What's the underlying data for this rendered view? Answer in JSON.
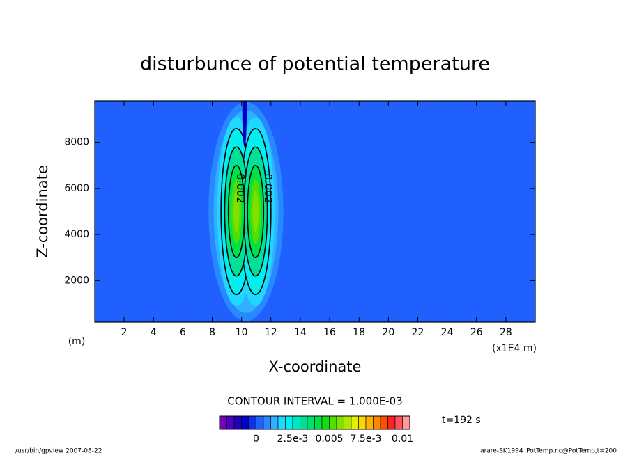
{
  "chart_data": {
    "type": "contour",
    "title": "disturbunce of potential temperature",
    "xlabel": "X-coordinate",
    "ylabel": "Z-coordinate",
    "x_units": "(x1E4 m)",
    "y_units": "(m)",
    "xlim": [
      0,
      30
    ],
    "ylim": [
      200,
      9800
    ],
    "xticks": [
      2,
      4,
      6,
      8,
      10,
      12,
      14,
      16,
      18,
      20,
      22,
      24,
      26,
      28
    ],
    "yticks": [
      2000,
      4000,
      6000,
      8000
    ],
    "background_value": 0,
    "blobs": [
      {
        "x": 10.3,
        "z": 5000,
        "rx": 2.55,
        "rz": 4750,
        "value": 0.0005
      },
      {
        "x": 10.3,
        "z": 5000,
        "rx": 2.2,
        "rz": 4400,
        "value": 0.001
      },
      {
        "x": 9.65,
        "z": 5000,
        "rx": 1.3,
        "rz": 4100,
        "value": 0.0015
      },
      {
        "x": 10.95,
        "z": 5000,
        "rx": 1.3,
        "rz": 4100,
        "value": 0.0015
      },
      {
        "x": 9.65,
        "z": 5000,
        "rx": 1.05,
        "rz": 3600,
        "value": 0.002
      },
      {
        "x": 10.95,
        "z": 5000,
        "rx": 1.05,
        "rz": 3600,
        "value": 0.002
      },
      {
        "x": 9.65,
        "z": 5000,
        "rx": 0.8,
        "rz": 2800,
        "value": 0.003
      },
      {
        "x": 10.95,
        "z": 5000,
        "rx": 0.8,
        "rz": 2800,
        "value": 0.003
      },
      {
        "x": 9.65,
        "z": 5000,
        "rx": 0.55,
        "rz": 2000,
        "value": 0.004
      },
      {
        "x": 10.95,
        "z": 5000,
        "rx": 0.55,
        "rz": 2000,
        "value": 0.004
      },
      {
        "x": 9.65,
        "z": 5000,
        "rx": 0.35,
        "rz": 1400,
        "value": 0.005
      },
      {
        "x": 10.95,
        "z": 5000,
        "rx": 0.35,
        "rz": 1400,
        "value": 0.005
      },
      {
        "x": 9.65,
        "z": 5000,
        "rx": 0.2,
        "rz": 900,
        "value": 0.0055
      },
      {
        "x": 10.95,
        "z": 5000,
        "rx": 0.2,
        "rz": 900,
        "value": 0.0055
      },
      {
        "x": 10.2,
        "z": 9300,
        "rx": 0.15,
        "rz": 1500,
        "value": -0.001
      }
    ],
    "contour_levels": [
      0.002,
      0.003,
      0.004
    ],
    "contour_labels": [
      {
        "text": "0.002",
        "x": 9.9,
        "z": 6000
      },
      {
        "text": "0.002",
        "x": 11.8,
        "z": 6000
      }
    ],
    "contour_interval": "CONTOUR INTERVAL = 1.000E-03",
    "time_label": "t=192 s",
    "colorbar": {
      "levels": [
        -0.0025,
        -0.002,
        -0.0015,
        -0.001,
        -0.0005,
        0,
        0.0005,
        0.001,
        0.0015,
        0.002,
        0.0025,
        0.003,
        0.0035,
        0.004,
        0.0045,
        0.005,
        0.0055,
        0.006,
        0.0065,
        0.007,
        0.0075,
        0.008,
        0.0085,
        0.009,
        0.0095,
        0.01,
        0.0105
      ],
      "colors": [
        "#7a00b4",
        "#4a00c8",
        "#2200b8",
        "#0000c8",
        "#1030e0",
        "#2060ff",
        "#2888ff",
        "#30b0ff",
        "#20d8ff",
        "#00f0f0",
        "#00e8c0",
        "#00e098",
        "#00e070",
        "#00e048",
        "#10e010",
        "#50e000",
        "#80e000",
        "#b0e800",
        "#e0f000",
        "#f8d800",
        "#ffb000",
        "#ff8800",
        "#ff5000",
        "#ff2020",
        "#ff5060",
        "#ff9898"
      ],
      "ticks": [
        0,
        {
          "value": 0.0025,
          "label": "2.5e-3"
        },
        0.005,
        {
          "value": 0.0075,
          "label": "7.5e-3"
        },
        0.01
      ]
    },
    "footer_left": "/usr/bin/gpview   2007-08-22",
    "footer_right": "arare-SK1994_PotTemp.nc@PotTemp,t=200"
  }
}
